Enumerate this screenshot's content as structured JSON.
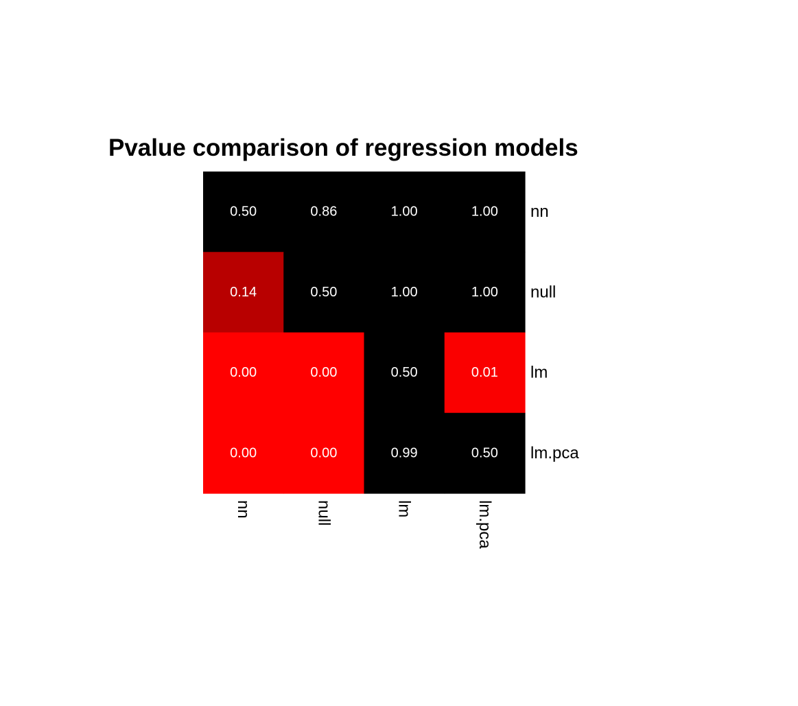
{
  "chart_data": {
    "type": "heatmap",
    "title": "Pvalue comparison of regression models",
    "xlabel": "",
    "ylabel": "",
    "columns": [
      "nn",
      "null",
      "lm",
      "lm.pca"
    ],
    "rows": [
      "nn",
      "null",
      "lm",
      "lm.pca"
    ],
    "values": [
      [
        0.5,
        0.86,
        1.0,
        1.0
      ],
      [
        0.14,
        0.5,
        1.0,
        1.0
      ],
      [
        0.0,
        0.0,
        0.5,
        0.01
      ],
      [
        0.0,
        0.0,
        0.99,
        0.5
      ]
    ],
    "cell_labels": [
      [
        "0.50",
        "0.86",
        "1.00",
        "1.00"
      ],
      [
        "0.14",
        "0.50",
        "1.00",
        "1.00"
      ],
      [
        "0.00",
        "0.00",
        "0.50",
        "0.01"
      ],
      [
        "0.00",
        "0.00",
        "0.99",
        "0.50"
      ]
    ],
    "colors": {
      "low": "#ff0000",
      "high": "#000000",
      "cell_text": "#ffffff",
      "axis_text": "#000000",
      "background": "#ffffff"
    },
    "row_labels_position": "right",
    "column_labels_position": "bottom",
    "column_labels_rotation": "vertical",
    "grid": false,
    "legend": false
  }
}
